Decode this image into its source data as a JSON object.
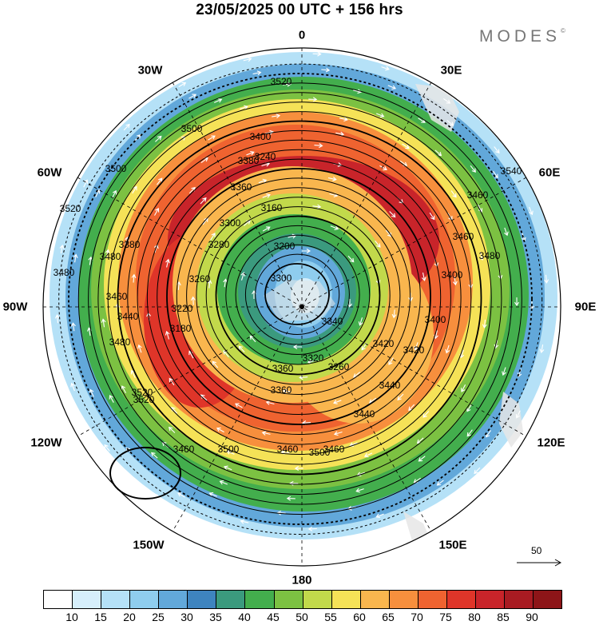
{
  "header": {
    "title": "23/05/2025  00 UTC  + 156 hrs"
  },
  "brand": {
    "name": "MODES",
    "mark": "©"
  },
  "map": {
    "projection": "polar-stereographic-south",
    "longitude_labels": [
      "0",
      "30E",
      "60E",
      "90E",
      "120E",
      "150E",
      "180",
      "150W",
      "120W",
      "90W",
      "60W",
      "30W"
    ],
    "contour_labels": [
      "3520",
      "3500",
      "3480",
      "3460",
      "3440",
      "3420",
      "3400",
      "3380",
      "3360",
      "3340",
      "3320",
      "3300",
      "3280",
      "3260",
      "3240",
      "3220",
      "3180",
      "3160",
      "3540"
    ],
    "reference_vector": "50",
    "colors": {
      "ocean_bg": "#ffffff",
      "land": "#e6e6e6",
      "contour": "#000000",
      "vectors": "#ffffff"
    }
  },
  "colorbar": {
    "ticks": [
      "10",
      "15",
      "20",
      "25",
      "30",
      "35",
      "40",
      "45",
      "50",
      "55",
      "60",
      "65",
      "70",
      "75",
      "80",
      "85",
      "90"
    ],
    "colors": [
      "#ffffff",
      "#d6effb",
      "#b5e1f7",
      "#8fcdee",
      "#62a8da",
      "#3e84bf",
      "#3b9a7e",
      "#43ae4d",
      "#7cc142",
      "#c2d94b",
      "#f5e257",
      "#f9b64e",
      "#f78f3d",
      "#ef6330",
      "#df3529",
      "#c8242a",
      "#a81b22",
      "#8d1518"
    ]
  }
}
